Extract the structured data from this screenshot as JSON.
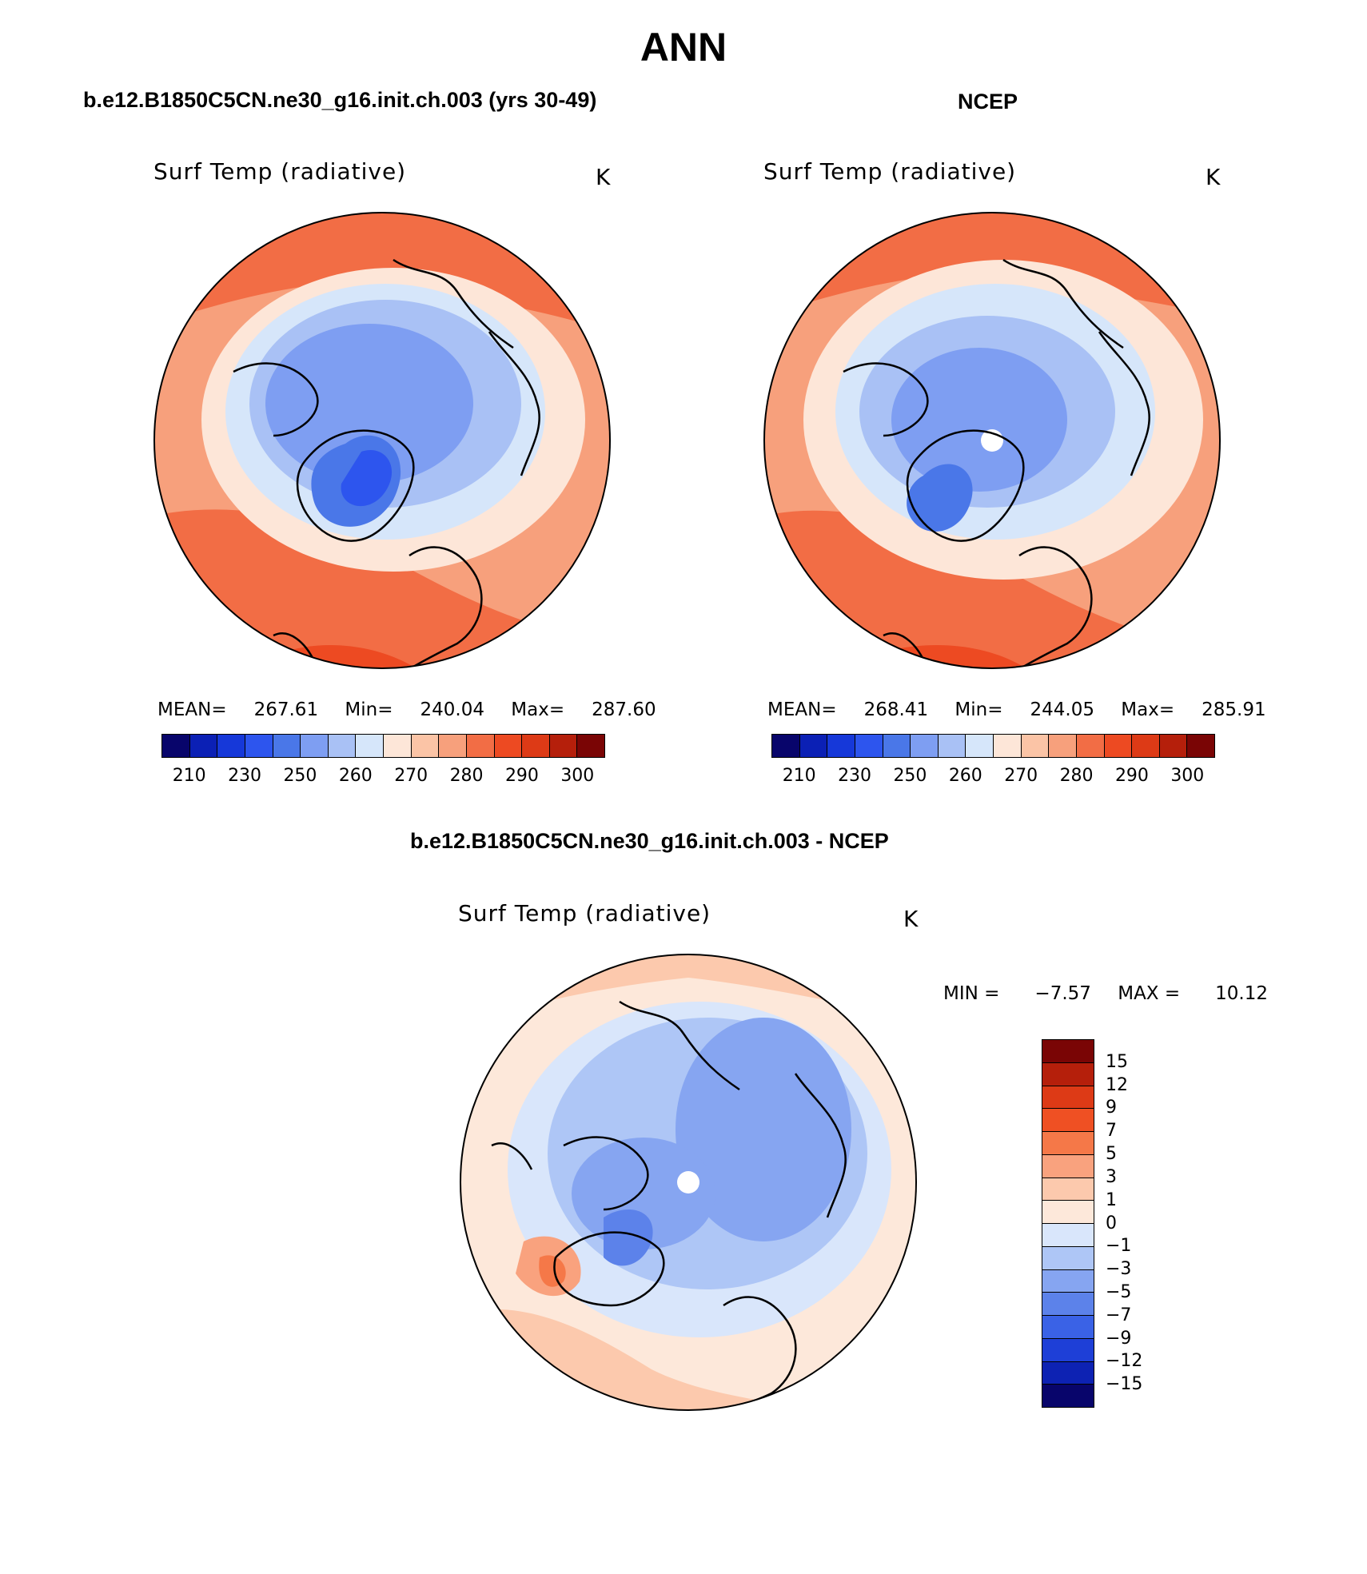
{
  "page_title": "ANN",
  "panels": {
    "model": {
      "case_title": "b.e12.B1850C5CN.ne30_g16.init.ch.003 (yrs 30-49)",
      "variable": "Surf Temp (radiative)",
      "units": "K",
      "mean_label": "MEAN=",
      "mean": "267.61",
      "min_label": "Min=",
      "min": "240.04",
      "max_label": "Max=",
      "max": "287.60"
    },
    "obs": {
      "case_title": "NCEP",
      "variable": "Surf Temp (radiative)",
      "units": "K",
      "mean_label": "MEAN=",
      "mean": "268.41",
      "min_label": "Min=",
      "min": "244.05",
      "max_label": "Max=",
      "max": "285.91"
    },
    "diff": {
      "case_title": "b.e12.B1850C5CN.ne30_g16.init.ch.003 - NCEP",
      "variable": "Surf Temp (radiative)",
      "units": "K",
      "min_label": "MIN =",
      "min": "−7.57",
      "max_label": "MAX =",
      "max": "10.12"
    }
  },
  "abs_colorbar": {
    "colors": [
      "#08056b",
      "#0b20b5",
      "#1638d9",
      "#2d55ee",
      "#4a77e8",
      "#7e9ef2",
      "#a9c1f5",
      "#d6e6fa",
      "#fde6d8",
      "#fbc4a6",
      "#f7a07c",
      "#f26d45",
      "#ed4a22",
      "#dd3a16",
      "#b51f0b",
      "#7a0505"
    ],
    "ticks": [
      "210",
      "230",
      "250",
      "260",
      "270",
      "280",
      "290",
      "300"
    ]
  },
  "diff_colorbar": {
    "colors": [
      "#7a0505",
      "#b51f0b",
      "#dd3a16",
      "#ef5023",
      "#f57848",
      "#f9a27e",
      "#fcc9ad",
      "#fde8da",
      "#d9e6fb",
      "#aec6f6",
      "#86a5f1",
      "#5c82ea",
      "#3a62e6",
      "#1e3fd7",
      "#0d22b3",
      "#08056b"
    ],
    "ticks": [
      "15",
      "12",
      "9",
      "7",
      "5",
      "3",
      "1",
      "0",
      "−1",
      "−3",
      "−5",
      "−7",
      "−9",
      "−12",
      "−15"
    ]
  }
}
